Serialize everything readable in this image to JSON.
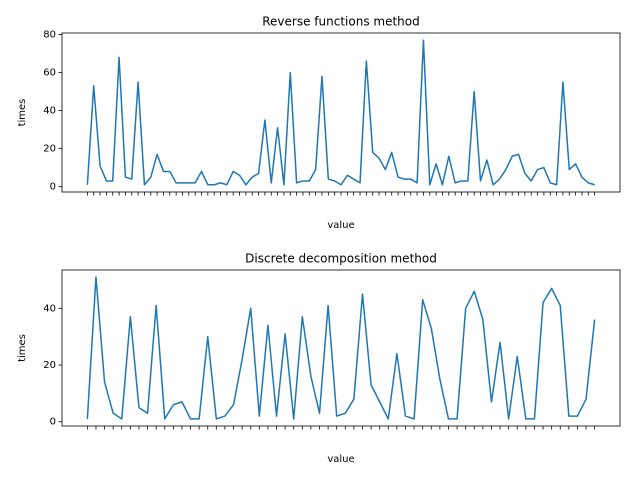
{
  "chart_data": [
    {
      "type": "line",
      "title": "Reverse functions method",
      "x_label": "value",
      "y_label": "times",
      "categories": [
        null,
        null,
        null,
        null,
        null,
        null,
        null,
        null,
        null,
        null,
        null,
        null,
        null,
        null,
        null,
        null,
        null,
        null,
        null,
        null,
        null,
        null,
        null,
        null,
        null,
        null,
        null,
        null,
        null,
        null,
        null,
        null,
        null,
        null,
        null,
        null,
        null,
        null,
        null,
        null,
        null,
        null,
        null,
        null,
        null,
        null,
        null,
        null,
        null,
        null,
        null,
        null,
        null,
        null,
        null,
        null,
        null,
        null,
        null,
        null,
        null,
        null,
        null,
        null,
        null,
        null,
        null,
        null,
        null,
        null,
        null,
        null,
        null,
        null,
        null,
        null,
        null,
        null,
        null,
        null,
        null
      ],
      "series": [
        {
          "name": null,
          "color": "#1f77b4",
          "values": [
            1,
            53,
            11,
            3,
            3,
            68,
            5,
            4,
            55,
            1,
            5,
            17,
            8,
            8,
            2,
            2,
            2,
            2,
            8,
            1,
            1,
            2,
            1,
            8,
            6,
            1,
            5,
            7,
            35,
            2,
            31,
            1,
            60,
            2,
            3,
            3,
            9,
            58,
            4,
            3,
            1,
            6,
            4,
            2,
            66,
            18,
            15,
            9,
            18,
            5,
            4,
            4,
            2,
            77,
            1,
            12,
            1,
            16,
            2,
            3,
            3,
            50,
            3,
            14,
            1,
            4,
            9,
            16,
            17,
            7,
            3,
            9,
            10,
            2,
            1,
            55,
            9,
            12,
            5,
            2,
            1
          ]
        }
      ],
      "ylim": [
        -2.8,
        80.8
      ],
      "yticks": [
        0,
        20,
        40,
        60,
        80
      ]
    },
    {
      "type": "line",
      "title": "Discrete decomposition method",
      "x_label": "value",
      "y_label": "times",
      "categories": [
        null,
        null,
        null,
        null,
        null,
        null,
        null,
        null,
        null,
        null,
        null,
        null,
        null,
        null,
        null,
        null,
        null,
        null,
        null,
        null,
        null,
        null,
        null,
        null,
        null,
        null,
        null,
        null,
        null,
        null,
        null,
        null,
        null,
        null,
        null,
        null,
        null,
        null,
        null,
        null,
        null,
        null,
        null,
        null,
        null,
        null,
        null,
        null,
        null,
        null,
        null,
        null,
        null,
        null,
        null,
        null,
        null,
        null,
        null,
        null
      ],
      "series": [
        {
          "name": null,
          "color": "#1f77b4",
          "values": [
            1,
            51,
            14,
            3,
            1,
            37,
            5,
            3,
            41,
            1,
            6,
            7,
            1,
            1,
            30,
            1,
            2,
            6,
            22,
            40,
            2,
            34,
            2,
            31,
            1,
            37,
            16,
            3,
            41,
            2,
            3,
            8,
            45,
            13,
            7,
            1,
            24,
            2,
            1,
            43,
            33,
            15,
            1,
            1,
            40,
            46,
            36,
            7,
            28,
            1,
            23,
            1,
            1,
            42,
            47,
            41,
            2,
            2,
            8,
            36
          ]
        }
      ],
      "ylim": [
        -1.5,
        53.5
      ],
      "yticks": [
        0,
        20,
        40
      ]
    }
  ]
}
